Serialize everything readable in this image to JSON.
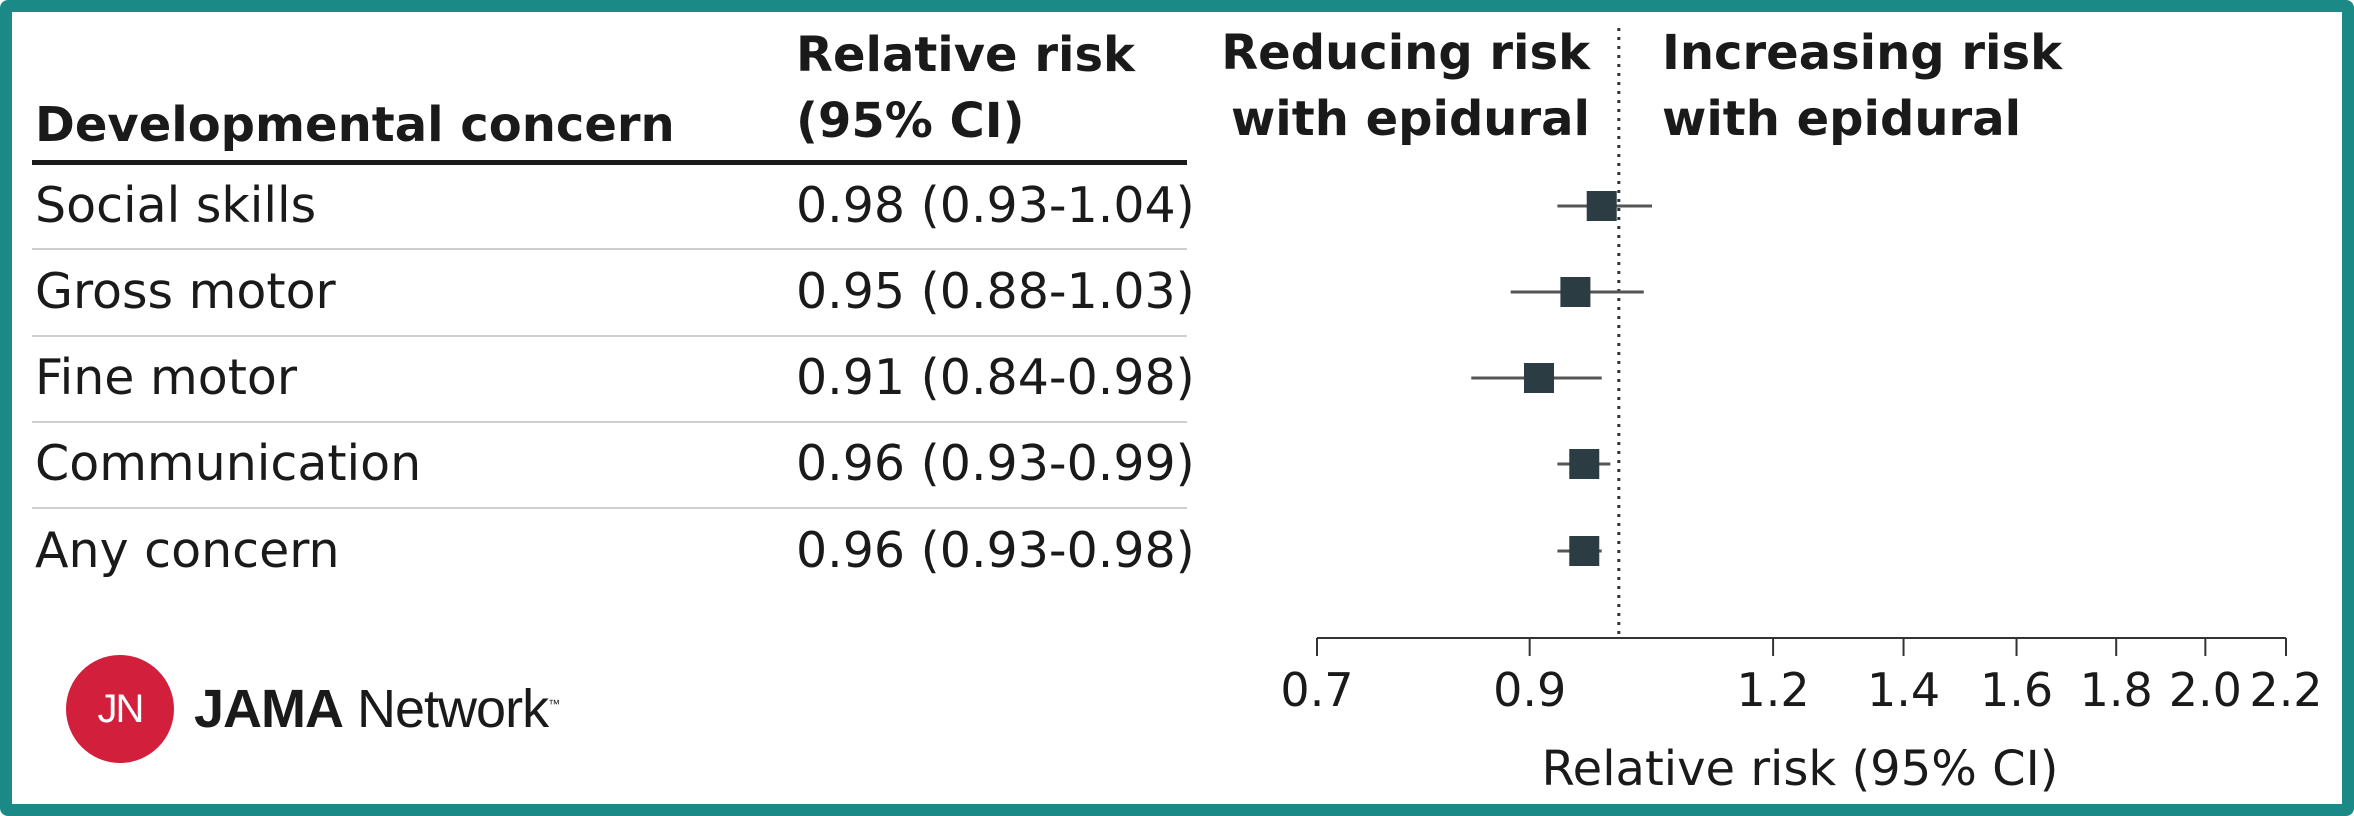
{
  "table": {
    "col1_header": "Developmental concern",
    "col2_header_line1": "Relative risk",
    "col2_header_line2": "(95% CI)",
    "rows": [
      {
        "label": "Social skills",
        "ci_text": "0.98 (0.93-1.04)"
      },
      {
        "label": "Gross motor",
        "ci_text": "0.95 (0.88-1.03)"
      },
      {
        "label": "Fine motor",
        "ci_text": "0.91 (0.84-0.98)"
      },
      {
        "label": "Communication",
        "ci_text": "0.96 (0.93-0.99)"
      },
      {
        "label": "Any concern",
        "ci_text": "0.96 (0.93-0.98)"
      }
    ]
  },
  "chart_data": {
    "type": "forest",
    "categories": [
      "Social skills",
      "Gross motor",
      "Fine motor",
      "Communication",
      "Any concern"
    ],
    "values": [
      0.98,
      0.95,
      0.91,
      0.96,
      0.96
    ],
    "ci_low": [
      0.93,
      0.88,
      0.84,
      0.93,
      0.93
    ],
    "ci_high": [
      1.04,
      1.03,
      0.98,
      0.99,
      0.98
    ],
    "reference_line": 1.0,
    "scale": "log",
    "xlim": [
      0.7,
      2.2
    ],
    "ticks": [
      "0.7",
      "0.9",
      "1.2",
      "1.4",
      "1.6",
      "1.8",
      "2.0",
      "2.2"
    ],
    "xlabel": "Relative risk (95% CI)",
    "left_annotation": [
      "Reducing risk",
      "with epidural"
    ],
    "right_annotation": [
      "Increasing risk",
      "with epidural"
    ],
    "marker_color": "#2b3d42",
    "line_color": "#555555"
  },
  "brand": {
    "logo_text": "JN",
    "name_bold": "JAMA",
    "name_light": " Network",
    "trademark": "™",
    "logo_color": "#d21f3c"
  },
  "frame_color": "#1b8a86"
}
